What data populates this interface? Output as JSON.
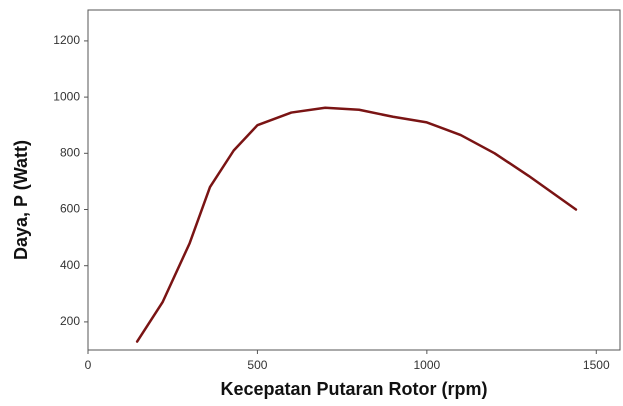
{
  "chart_data": {
    "type": "line",
    "xlabel": "Kecepatan Putaran Rotor (rpm)",
    "ylabel": "Daya, P (Watt)",
    "x": [
      145,
      220,
      300,
      360,
      430,
      500,
      600,
      700,
      800,
      900,
      1000,
      1100,
      1200,
      1300,
      1440
    ],
    "values": [
      130,
      270,
      480,
      680,
      810,
      900,
      945,
      962,
      955,
      930,
      910,
      865,
      800,
      720,
      600
    ],
    "color": "#7a1414",
    "xlim": [
      0,
      1570
    ],
    "xticks": [
      0,
      500,
      1000,
      1500
    ],
    "ylim": [
      100,
      1310
    ],
    "yticks": [
      200,
      400,
      600,
      800,
      1000,
      1200
    ]
  }
}
